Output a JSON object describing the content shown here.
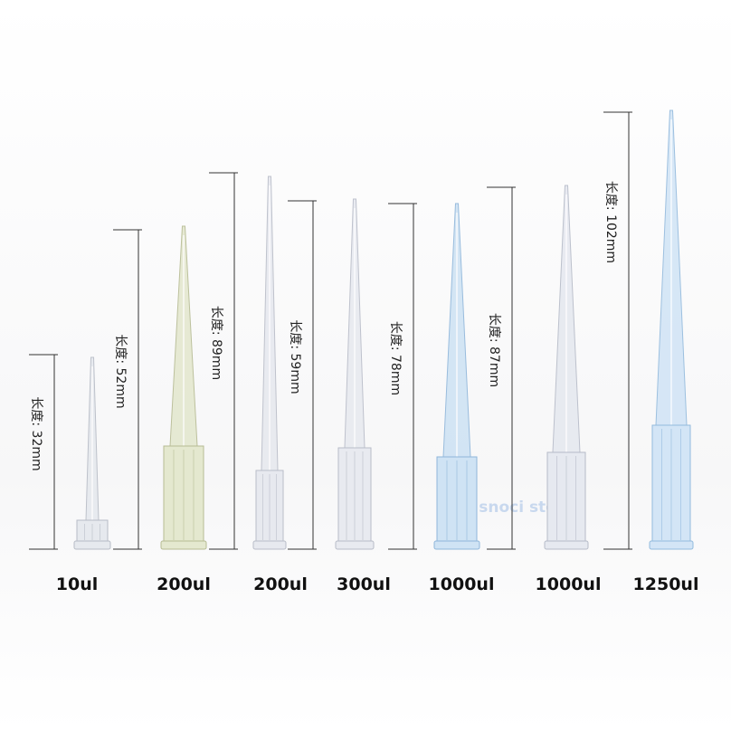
{
  "items": [
    {
      "volume": "10ul",
      "length": "长度: 32mm"
    },
    {
      "volume": "200ul",
      "length": "长度: 52mm"
    },
    {
      "volume": "200ul",
      "length": "长度: 89mm"
    },
    {
      "volume": "300ul",
      "length": "长度: 59mm"
    },
    {
      "volume": "1000ul",
      "length": "长度: 78mm"
    },
    {
      "volume": "1000ul",
      "length": "长度: 87mm"
    },
    {
      "volume": "1250ul",
      "length": "长度: 102mm"
    }
  ],
  "watermark": "snoci store"
}
